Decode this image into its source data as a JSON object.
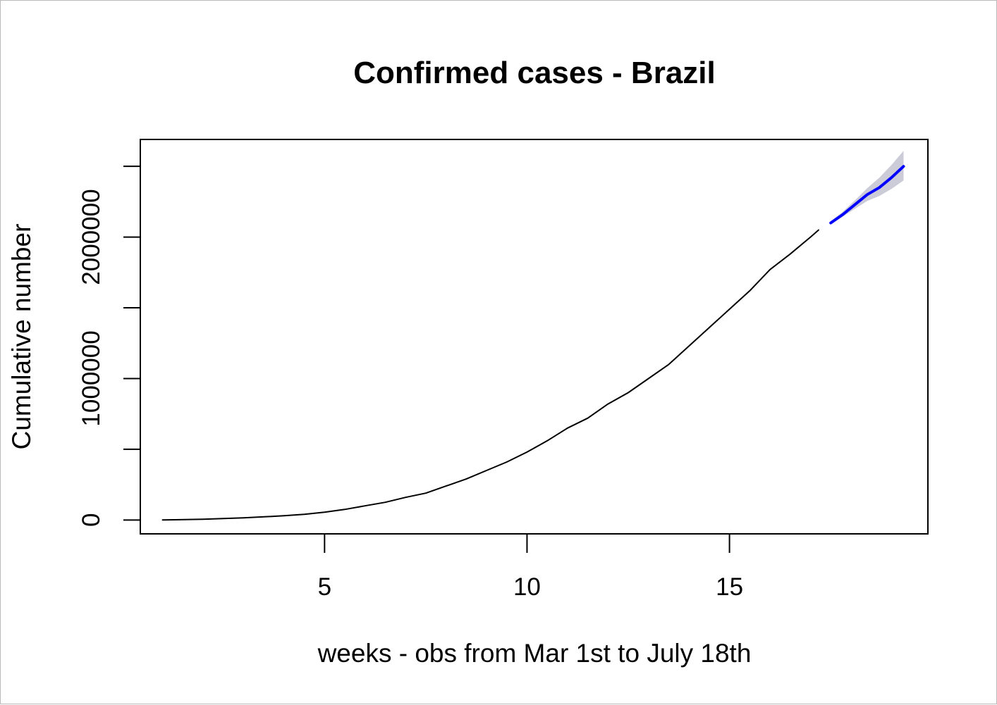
{
  "chart_data": {
    "type": "line",
    "title": "Confirmed cases - Brazil",
    "xlabel": "weeks - obs from Mar 1st to July 18th",
    "ylabel": "Cumulative number",
    "xlim": [
      0.45,
      19.9
    ],
    "ylim": [
      -98000,
      2690000
    ],
    "x_ticks": [
      5,
      10,
      15
    ],
    "y_ticks": [
      0,
      500000,
      1000000,
      1500000,
      2000000,
      2500000
    ],
    "y_tick_labels": [
      "0",
      "",
      "1000000",
      "",
      "2000000",
      ""
    ],
    "grid": false,
    "series": [
      {
        "color": "#000000",
        "x": [
          1,
          2,
          3,
          4,
          4.5,
          5,
          5.5,
          6,
          6.5,
          7,
          7.5,
          8,
          8.5,
          9,
          9.5,
          10,
          10.5,
          11,
          11.5,
          12,
          12.5,
          13,
          13.5,
          14,
          14.5,
          15,
          15.5,
          16,
          16.5,
          17,
          17.2
        ],
        "y": [
          0,
          5000,
          15000,
          30000,
          40000,
          55000,
          75000,
          100000,
          125000,
          160000,
          190000,
          240000,
          290000,
          350000,
          410000,
          480000,
          560000,
          650000,
          720000,
          820000,
          900000,
          1000000,
          1100000,
          1230000,
          1360000,
          1490000,
          1620000,
          1770000,
          1880000,
          2000000,
          2050000
        ]
      },
      {
        "color": "#0000ff",
        "x": [
          17.5,
          17.8,
          18.1,
          18.4,
          18.7,
          19.0,
          19.3
        ],
        "y": [
          2100000,
          2160000,
          2230000,
          2300000,
          2350000,
          2420000,
          2500000
        ],
        "band_lower": [
          2090000,
          2145000,
          2200000,
          2255000,
          2290000,
          2340000,
          2400000
        ],
        "band_upper": [
          2110000,
          2180000,
          2260000,
          2345000,
          2420000,
          2510000,
          2610000
        ],
        "band_color": "#bfbfcf"
      }
    ]
  }
}
